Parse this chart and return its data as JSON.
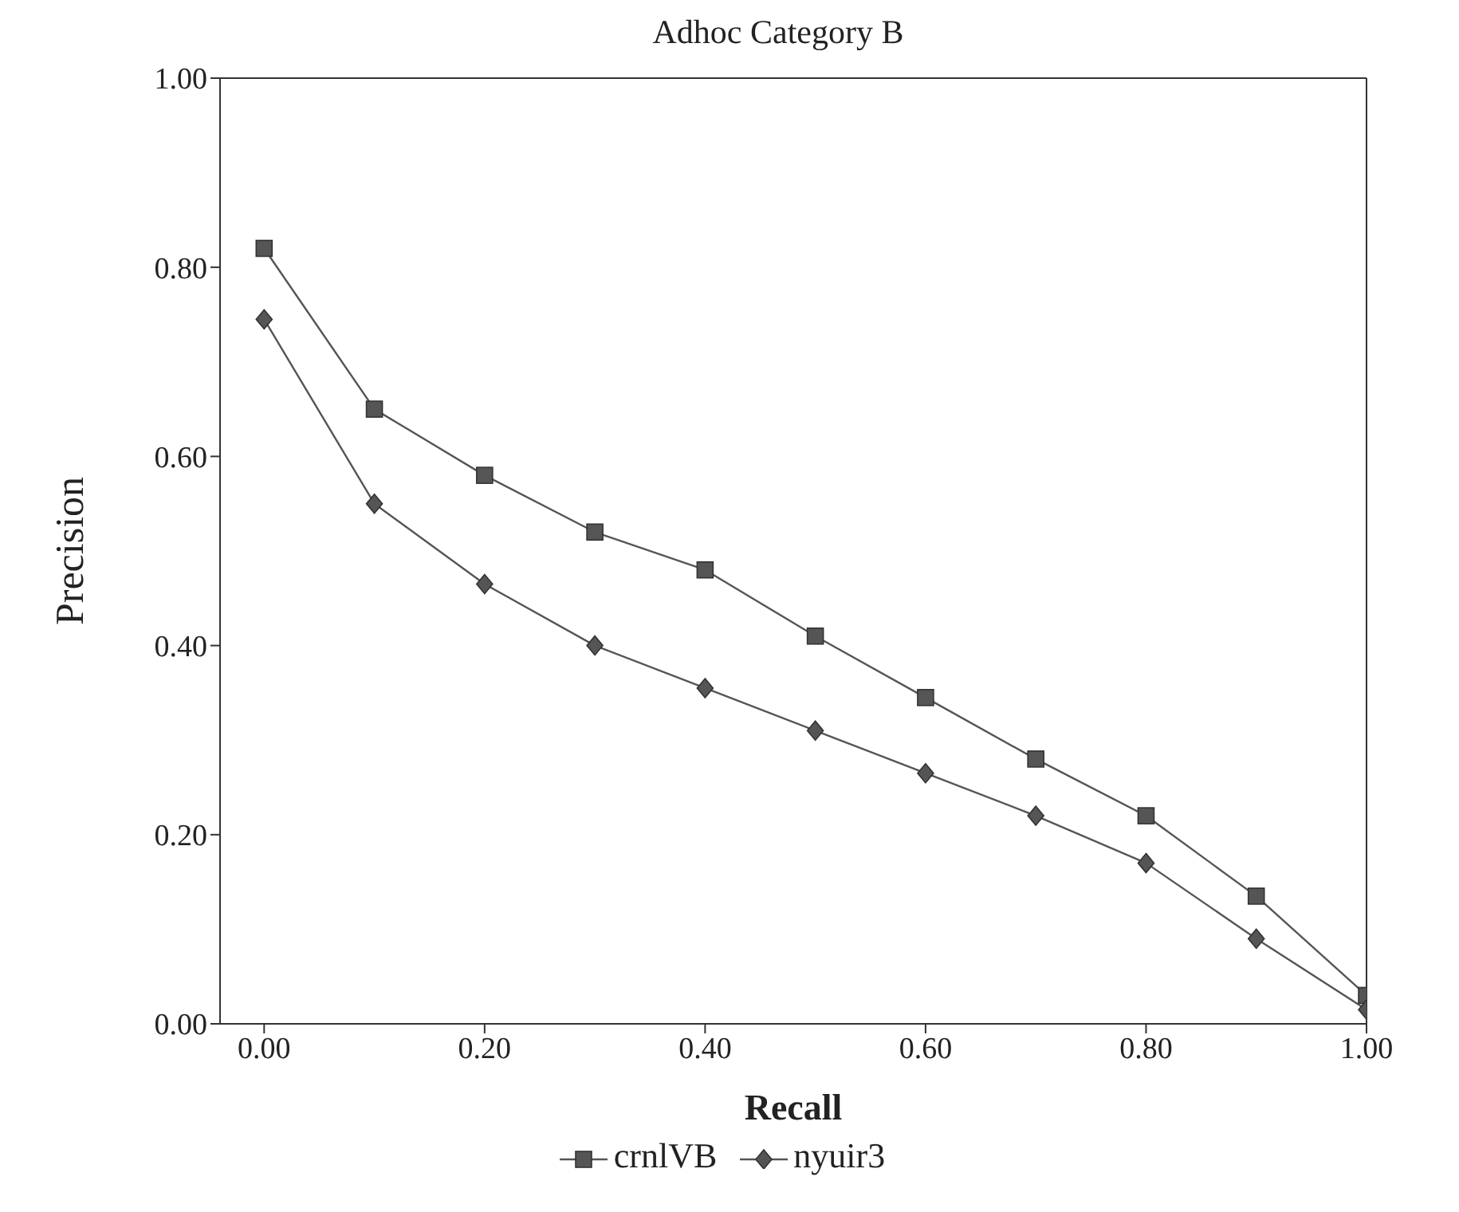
{
  "chart_data": {
    "type": "line",
    "title": "Adhoc Category B",
    "xlabel": "Recall",
    "ylabel": "Precision",
    "x": [
      0,
      0.1,
      0.2,
      0.3,
      0.4,
      0.5,
      0.6,
      0.7,
      0.8,
      0.9,
      1.0
    ],
    "series": [
      {
        "name": "crnlVB",
        "color": "#555555",
        "marker": "square",
        "values": [
          0.82,
          0.65,
          0.58,
          0.52,
          0.48,
          0.41,
          0.345,
          0.28,
          0.22,
          0.135,
          0.03
        ]
      },
      {
        "name": "nyuir3",
        "color": "#555555",
        "marker": "diamond",
        "values": [
          0.745,
          0.55,
          0.465,
          0.4,
          0.355,
          0.31,
          0.265,
          0.22,
          0.17,
          0.09,
          0.015
        ]
      }
    ],
    "xlim": [
      -0.04,
      1.0
    ],
    "ylim": [
      0,
      1.0
    ],
    "xticks": [
      {
        "value": 0,
        "label": "0.00"
      },
      {
        "value": 0.2,
        "label": "0.20"
      },
      {
        "value": 0.4,
        "label": "0.40"
      },
      {
        "value": 0.6,
        "label": "0.60"
      },
      {
        "value": 0.8,
        "label": "0.80"
      },
      {
        "value": 1.0,
        "label": "1.00"
      }
    ],
    "yticks": [
      {
        "value": 0,
        "label": "0.00"
      },
      {
        "value": 0.2,
        "label": "0.20"
      },
      {
        "value": 0.4,
        "label": "0.40"
      },
      {
        "value": 0.6,
        "label": "0.60"
      },
      {
        "value": 0.8,
        "label": "0.80"
      },
      {
        "value": 1.0,
        "label": "1.00"
      }
    ],
    "grid": false,
    "legend": "bottom",
    "line_style": "solid"
  }
}
